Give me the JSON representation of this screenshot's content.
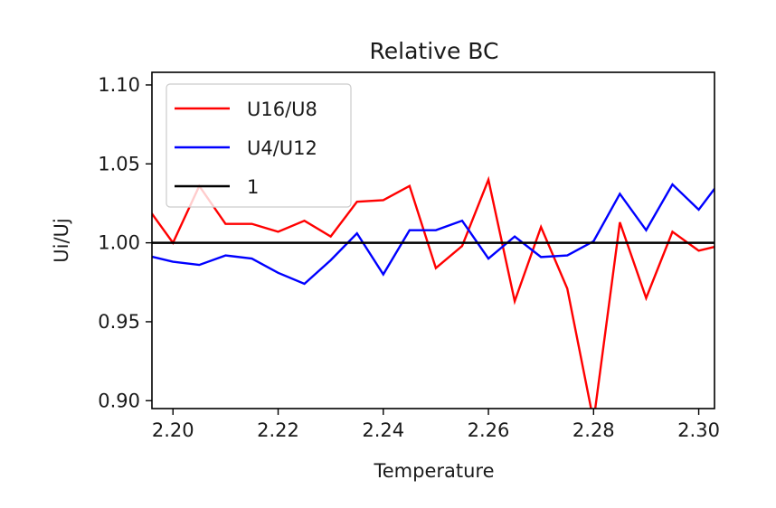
{
  "chart_data": {
    "type": "line",
    "title": "Relative BC",
    "xlabel": "Temperature",
    "ylabel": "Ui/Uj",
    "xlim": [
      2.196,
      2.303
    ],
    "ylim": [
      0.895,
      1.108
    ],
    "xticks": [
      2.2,
      2.22,
      2.24,
      2.26,
      2.28,
      2.3
    ],
    "xtick_labels": [
      "2.20",
      "2.22",
      "2.24",
      "2.26",
      "2.28",
      "2.30"
    ],
    "yticks": [
      0.9,
      0.95,
      1.0,
      1.05,
      1.1
    ],
    "ytick_labels": [
      "0.90",
      "0.95",
      "1.00",
      "1.05",
      "1.10"
    ],
    "grid": false,
    "legend_position": "upper-left",
    "series": [
      {
        "name": "U16/U8",
        "color": "#ff0000",
        "x": [
          2.195,
          2.2,
          2.205,
          2.21,
          2.215,
          2.22,
          2.225,
          2.23,
          2.235,
          2.24,
          2.245,
          2.25,
          2.255,
          2.26,
          2.265,
          2.27,
          2.275,
          2.28,
          2.285,
          2.29,
          2.295,
          2.3,
          2.305
        ],
        "values": [
          1.023,
          1.0,
          1.036,
          1.012,
          1.012,
          1.007,
          1.014,
          1.004,
          1.026,
          1.027,
          1.036,
          0.984,
          0.998,
          1.04,
          0.963,
          1.01,
          0.971,
          0.887,
          1.013,
          0.965,
          1.007,
          0.995,
          0.999
        ]
      },
      {
        "name": "U4/U12",
        "color": "#0000ff",
        "x": [
          2.195,
          2.2,
          2.205,
          2.21,
          2.215,
          2.22,
          2.225,
          2.23,
          2.235,
          2.24,
          2.245,
          2.25,
          2.255,
          2.26,
          2.265,
          2.27,
          2.275,
          2.28,
          2.285,
          2.29,
          2.295,
          2.3,
          2.305
        ],
        "values": [
          0.992,
          0.988,
          0.986,
          0.992,
          0.99,
          0.981,
          0.974,
          0.989,
          1.006,
          0.98,
          1.008,
          1.008,
          1.014,
          0.99,
          1.004,
          0.991,
          0.992,
          1.001,
          1.031,
          1.008,
          1.037,
          1.021,
          1.043
        ]
      },
      {
        "name": "1",
        "color": "#000000",
        "x": [
          2.195,
          2.305
        ],
        "values": [
          1.0,
          1.0
        ]
      }
    ]
  }
}
